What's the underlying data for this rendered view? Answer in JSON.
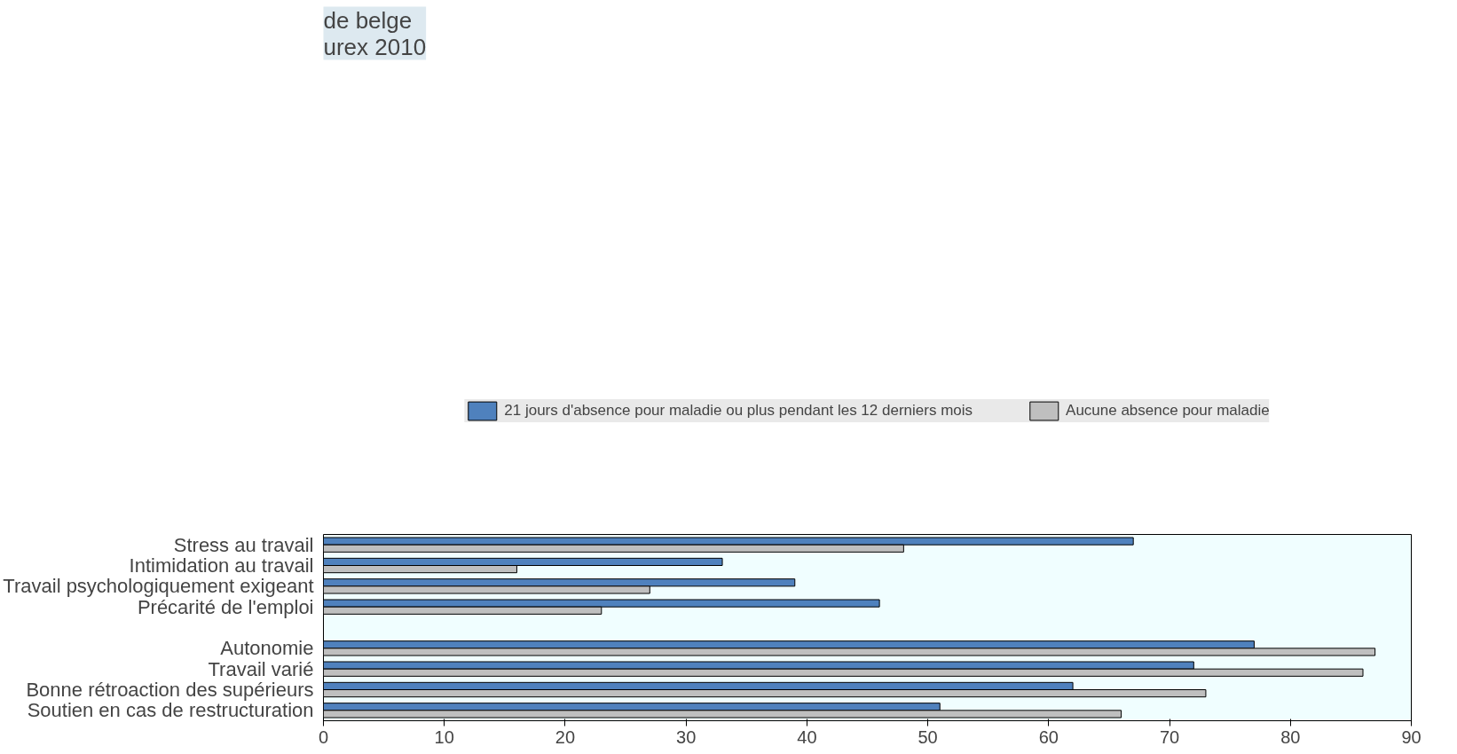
{
  "chart_data": {
    "type": "bar",
    "orientation": "horizontal",
    "title": "de belge\nurex 2010",
    "categories": [
      "Stress au travail",
      "Intimidation au travail",
      "Travail psychologiquement exigeant",
      "Précarité de l'emploi",
      null,
      "Autonomie",
      "Travail varié",
      "Bonne rétroaction des supérieurs",
      "Soutien en cas de restructuration"
    ],
    "series": [
      {
        "name": "21 jours d'absence pour maladie ou plus pendant les 12 derniers mois",
        "color": "#4f81bd",
        "values": [
          67,
          33,
          39,
          46,
          null,
          77,
          72,
          62,
          51
        ]
      },
      {
        "name": "Aucune absence pour maladie",
        "color": "#bfbfbf",
        "values": [
          48,
          16,
          27,
          23,
          null,
          87,
          86,
          73,
          66
        ]
      }
    ],
    "xlim": [
      0,
      90
    ],
    "xticks": [
      0,
      10,
      20,
      30,
      40,
      50,
      60,
      70,
      80,
      90
    ],
    "grid": false,
    "legend": "top"
  }
}
